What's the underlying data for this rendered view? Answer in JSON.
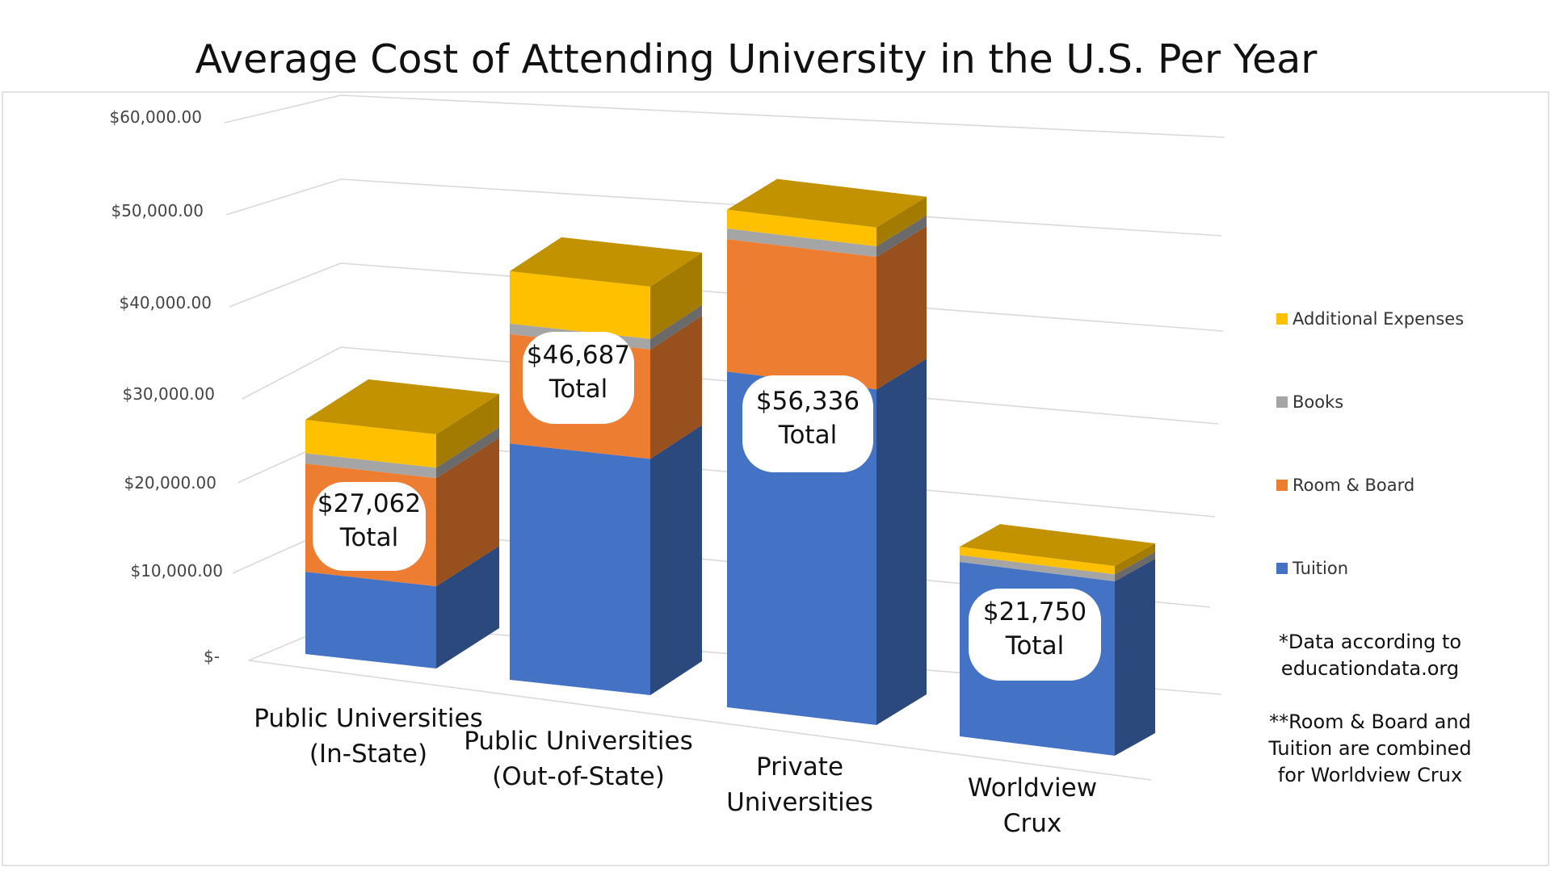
{
  "chart_data": {
    "type": "bar",
    "stacked": true,
    "title": "Average Cost of Attending University in the U.S. Per Year",
    "categories": [
      [
        "Public Universities",
        "(In-State)"
      ],
      [
        "Public Universities",
        "(Out-of-State)"
      ],
      [
        "Private",
        "Universities"
      ],
      [
        "Worldview",
        "Crux"
      ]
    ],
    "series": [
      {
        "name": "Tuition",
        "color": "#4472C4",
        "values": [
          9500,
          27000,
          38000,
          20000
        ]
      },
      {
        "name": "Room & Board",
        "color": "#ED7D31",
        "values": [
          12500,
          12500,
          15000,
          0
        ]
      },
      {
        "name": "Books",
        "color": "#A5A5A5",
        "values": [
          1200,
          1200,
          1200,
          800
        ]
      },
      {
        "name": "Additional Expenses",
        "color": "#FFC000",
        "values": [
          3862,
          5987,
          2136,
          950
        ]
      }
    ],
    "totals": [
      [
        "$27,062",
        "Total"
      ],
      [
        "$46,687",
        "Total"
      ],
      [
        "$56,336",
        "Total"
      ],
      [
        "$21,750",
        "Total"
      ]
    ],
    "y_ticks": [
      "$-",
      "$10,000.00",
      "$20,000.00",
      "$30,000.00",
      "$40,000.00",
      "$50,000.00",
      "$60,000.00"
    ],
    "ylim": [
      0,
      60000
    ],
    "grid": true,
    "legend_position": "right",
    "legend": [
      "Additional Expenses",
      "Books",
      "Room & Board",
      "Tuition"
    ],
    "notes": [
      [
        "*Data according to",
        "educationdata.org"
      ],
      [
        "**Room & Board and",
        "Tuition are combined",
        "for Worldview Crux"
      ]
    ]
  }
}
